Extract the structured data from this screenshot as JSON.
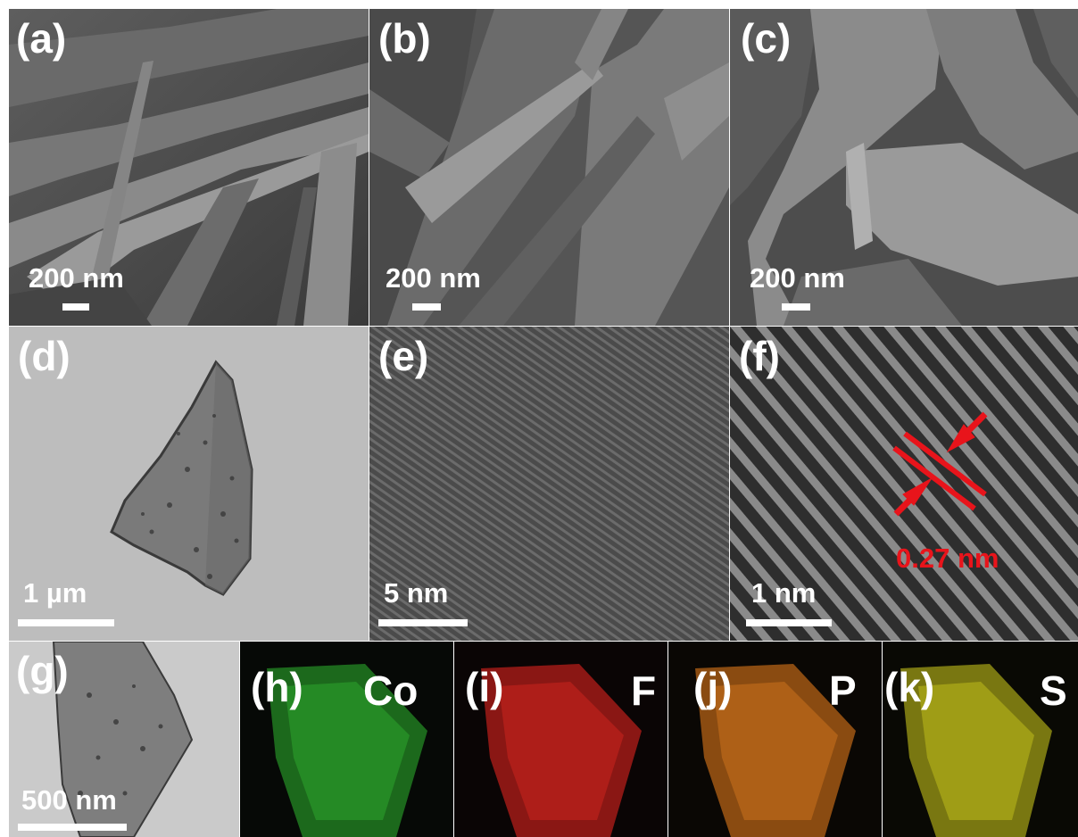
{
  "panels": {
    "a": {
      "label": "(a)",
      "scale_bar": "200 nm"
    },
    "b": {
      "label": "(b)",
      "scale_bar": "200 nm"
    },
    "c": {
      "label": "(c)",
      "scale_bar": "200 nm"
    },
    "d": {
      "label": "(d)",
      "scale_bar": "1 µm"
    },
    "e": {
      "label": "(e)",
      "scale_bar": "5 nm"
    },
    "f": {
      "label": "(f)",
      "scale_bar": "1 nm",
      "spacing_annotation": "0.27 nm"
    },
    "g": {
      "label": "(g)",
      "scale_bar": "500 nm"
    },
    "h": {
      "label": "(h)",
      "element": "Co",
      "map_color": "#2fb82f"
    },
    "i": {
      "label": "(i)",
      "element": "F",
      "map_color": "#e0231e"
    },
    "j": {
      "label": "(j)",
      "element": "P",
      "map_color": "#e07a1a"
    },
    "k": {
      "label": "(k)",
      "element": "S",
      "map_color": "#d6d21e"
    }
  },
  "annotation_color": "#e8141b"
}
